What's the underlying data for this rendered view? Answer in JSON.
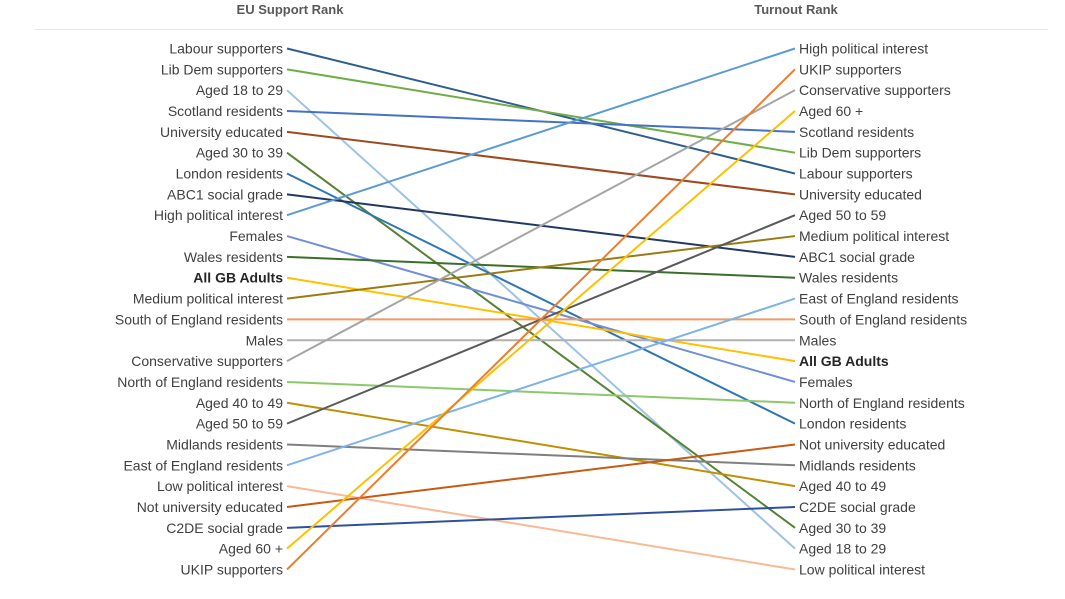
{
  "chart_data": {
    "type": "line",
    "subtype": "slope",
    "left_axis_title": "EU Support Rank",
    "right_axis_title": "Turnout Rank",
    "rank_range": [
      1,
      26
    ],
    "series": [
      {
        "name": "Labour supporters",
        "eu_rank": 1,
        "turnout_rank": 7,
        "color": "#2e5e8e"
      },
      {
        "name": "Lib Dem supporters",
        "eu_rank": 2,
        "turnout_rank": 6,
        "color": "#70ad47"
      },
      {
        "name": "Aged 18 to 29",
        "eu_rank": 3,
        "turnout_rank": 25,
        "color": "#9dc3e6"
      },
      {
        "name": "Scotland residents",
        "eu_rank": 4,
        "turnout_rank": 5,
        "color": "#4472c4"
      },
      {
        "name": "University educated",
        "eu_rank": 5,
        "turnout_rank": 8,
        "color": "#9e4a1f"
      },
      {
        "name": "Aged 30 to 39",
        "eu_rank": 6,
        "turnout_rank": 24,
        "color": "#548235"
      },
      {
        "name": "London residents",
        "eu_rank": 7,
        "turnout_rank": 19,
        "color": "#2e75b6"
      },
      {
        "name": "ABC1 social grade",
        "eu_rank": 8,
        "turnout_rank": 11,
        "color": "#203864"
      },
      {
        "name": "High political interest",
        "eu_rank": 9,
        "turnout_rank": 1,
        "color": "#5b9bd5"
      },
      {
        "name": "Females",
        "eu_rank": 10,
        "turnout_rank": 17,
        "color": "#6f8fd8"
      },
      {
        "name": "Wales residents",
        "eu_rank": 11,
        "turnout_rank": 12,
        "color": "#3b6e2a"
      },
      {
        "name": "All GB Adults",
        "eu_rank": 12,
        "turnout_rank": 16,
        "color": "#ffc000",
        "bold": true
      },
      {
        "name": "Medium political interest",
        "eu_rank": 13,
        "turnout_rank": 10,
        "color": "#9c7a12"
      },
      {
        "name": "South of England residents",
        "eu_rank": 14,
        "turnout_rank": 14,
        "color": "#f09a63"
      },
      {
        "name": "Males",
        "eu_rank": 15,
        "turnout_rank": 15,
        "color": "#b0b0b0"
      },
      {
        "name": "Conservative supporters",
        "eu_rank": 16,
        "turnout_rank": 3,
        "color": "#a5a5a5"
      },
      {
        "name": "North of England residents",
        "eu_rank": 17,
        "turnout_rank": 18,
        "color": "#8dc96b"
      },
      {
        "name": "Aged 40 to 49",
        "eu_rank": 18,
        "turnout_rank": 22,
        "color": "#c09000"
      },
      {
        "name": "Aged 50 to 59",
        "eu_rank": 19,
        "turnout_rank": 9,
        "color": "#595959"
      },
      {
        "name": "Midlands residents",
        "eu_rank": 20,
        "turnout_rank": 21,
        "color": "#7f7f7f"
      },
      {
        "name": "East of England residents",
        "eu_rank": 21,
        "turnout_rank": 13,
        "color": "#7eb3e6"
      },
      {
        "name": "Low political interest",
        "eu_rank": 22,
        "turnout_rank": 26,
        "color": "#f8b995"
      },
      {
        "name": "Not university educated",
        "eu_rank": 23,
        "turnout_rank": 20,
        "color": "#c55a11"
      },
      {
        "name": "C2DE social grade",
        "eu_rank": 24,
        "turnout_rank": 23,
        "color": "#2f4f9f"
      },
      {
        "name": "Aged 60 +",
        "eu_rank": 25,
        "turnout_rank": 4,
        "color": "#ffc000"
      },
      {
        "name": "UKIP supporters",
        "eu_rank": 26,
        "turnout_rank": 2,
        "color": "#ed7d31"
      }
    ]
  }
}
